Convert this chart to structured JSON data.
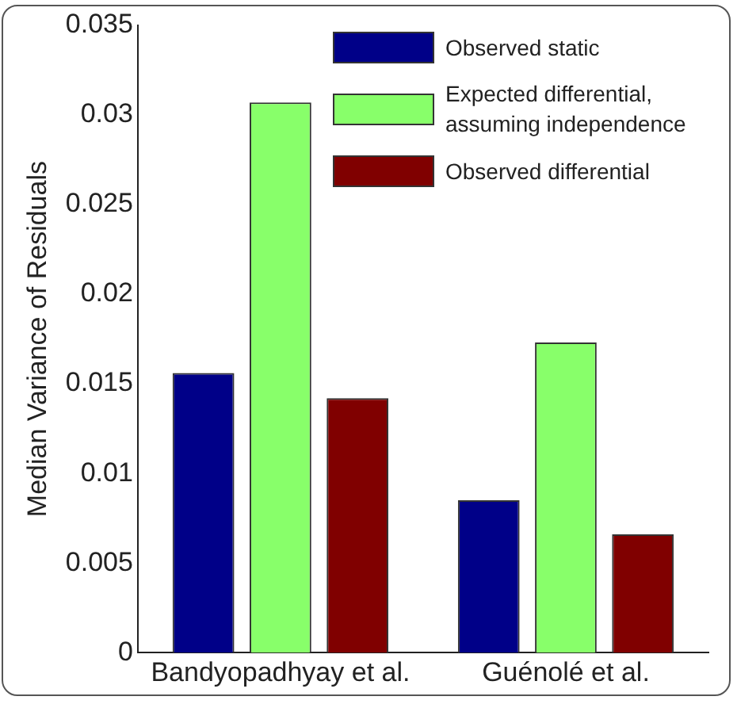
{
  "chart_data": {
    "type": "bar",
    "ylabel": "Median Variance of Residuals",
    "categories": [
      "Bandyopadhyay et al.",
      "Guénolé et al."
    ],
    "series": [
      {
        "name": "Observed static",
        "color": "#000088",
        "values": [
          0.0156,
          0.0085
        ]
      },
      {
        "name": "Expected differential, assuming independence",
        "color": "#88ff6a",
        "values": [
          0.0307,
          0.0173
        ]
      },
      {
        "name": "Observed differential",
        "color": "#800000",
        "values": [
          0.0142,
          0.0066
        ]
      }
    ],
    "ylim": [
      0,
      0.035
    ],
    "yticks": [
      0,
      0.005,
      0.01,
      0.015,
      0.02,
      0.025,
      0.03,
      0.035
    ],
    "grid": false,
    "legend": "top right"
  }
}
